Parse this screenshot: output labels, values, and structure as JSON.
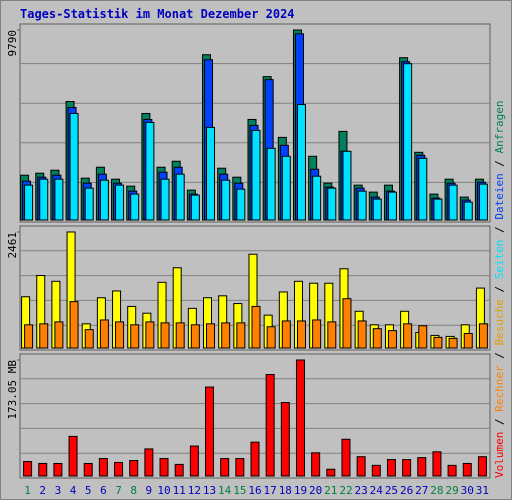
{
  "chart_data": [
    {
      "type": "bar",
      "title": "Tages-Statistik im Monat Dezember 2024",
      "ylim": [
        0,
        9790
      ],
      "yticks": [
        9790
      ],
      "series": [
        {
          "name": "Anfragen",
          "color": "#00805c",
          "values": [
            2308,
            2411,
            2565,
            6105,
            2155,
            2719,
            2103,
            1744,
            5489,
            2719,
            3027,
            1539,
            8516,
            2668,
            2206,
            5181,
            7387,
            4258,
            9790,
            3283,
            1898,
            4566,
            1796,
            1436,
            1796,
            8362,
            3488,
            1334,
            2103,
            1180,
            2103
          ]
        },
        {
          "name": "Dateien",
          "color": "#0040ff",
          "values": [
            2001,
            2206,
            2309,
            5797,
            1898,
            2360,
            1898,
            1488,
            5181,
            2462,
            2719,
            1334,
            8259,
            2360,
            1898,
            4874,
            7233,
            3848,
            9593,
            2616,
            1693,
            3540,
            1642,
            1180,
            1488,
            8157,
            3335,
            1129,
            1898,
            1026,
            1949
          ]
        },
        {
          "name": "Seiten",
          "color": "#00e0ff",
          "values": [
            1796,
            2103,
            2103,
            5489,
            1642,
            2052,
            1796,
            1334,
            5027,
            2103,
            2360,
            1283,
            4771,
            2052,
            1590,
            4617,
            3694,
            3283,
            5951,
            2257,
            1642,
            3540,
            1488,
            1077,
            1436,
            8054,
            3181,
            1077,
            1796,
            923,
            1847
          ]
        }
      ]
    },
    {
      "type": "bar",
      "ylim": [
        0,
        2461
      ],
      "yticks": [
        2461
      ],
      "series": [
        {
          "name": "Besuche",
          "color": "#ffff00",
          "values": [
            1087,
            1538,
            1415,
            2461,
            513,
            1066,
            1210,
            882,
            738,
            1394,
            1702,
            841,
            1066,
            1107,
            943,
            1989,
            697,
            1189,
            1415,
            1374,
            1374,
            1681,
            779,
            492,
            492,
            779,
            328,
            267,
            246,
            492,
            1271
          ]
        },
        {
          "name": "Rechner",
          "color": "#ff8000",
          "values": [
            492,
            513,
            554,
            984,
            390,
            595,
            554,
            492,
            554,
            533,
            533,
            492,
            513,
            533,
            533,
            882,
            451,
            574,
            574,
            595,
            554,
            1046,
            574,
            410,
            369,
            513,
            472,
            226,
            205,
            308,
            513
          ]
        }
      ]
    },
    {
      "type": "bar",
      "ylim": [
        0,
        173.05
      ],
      "yticks": [
        {
          "value": 173.05,
          "label": "173.05 MB"
        }
      ],
      "categories": [
        "1",
        "2",
        "3",
        "4",
        "5",
        "6",
        "7",
        "8",
        "9",
        "10",
        "11",
        "12",
        "13",
        "14",
        "15",
        "16",
        "17",
        "18",
        "19",
        "20",
        "21",
        "22",
        "23",
        "24",
        "25",
        "26",
        "27",
        "28",
        "29",
        "30",
        "31"
      ],
      "category_colors": [
        "#008040",
        "#0000c0",
        "#0000c0",
        "#0000c0",
        "#0000c0",
        "#0000c0",
        "#008040",
        "#008040",
        "#0000c0",
        "#0000c0",
        "#0000c0",
        "#0000c0",
        "#0000c0",
        "#008040",
        "#008040",
        "#0000c0",
        "#0000c0",
        "#0000c0",
        "#0000c0",
        "#0000c0",
        "#008040",
        "#008040",
        "#0000c0",
        "#0000c0",
        "#0000c0",
        "#0000c0",
        "#0000c0",
        "#008040",
        "#008040",
        "#0000c0",
        "#0000c0"
      ],
      "series": [
        {
          "name": "Volumen",
          "color": "#ff0000",
          "values": [
            21.6,
            18.7,
            18.7,
            59.1,
            18.7,
            26.0,
            20.2,
            23.1,
            40.4,
            26.0,
            17.3,
            44.7,
            132.7,
            26.0,
            26.0,
            50.5,
            151.4,
            109.6,
            173.05,
            34.6,
            10.1,
            54.8,
            28.8,
            15.9,
            24.5,
            24.5,
            27.4,
            36.1,
            15.9,
            18.7,
            28.8
          ]
        }
      ]
    }
  ],
  "legend_separator": " / "
}
